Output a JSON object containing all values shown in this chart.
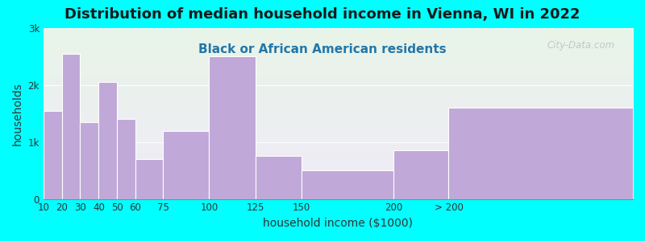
{
  "title": "Distribution of median household income in Vienna, WI in 2022",
  "subtitle": "Black or African American residents",
  "xlabel": "household income ($1000)",
  "ylabel": "households",
  "background_outer": "#00FFFF",
  "bar_color": "#C0A8D8",
  "bar_edge_color": "#FFFFFF",
  "bin_lefts": [
    10,
    20,
    30,
    40,
    50,
    60,
    75,
    100,
    125,
    150,
    200,
    230
  ],
  "bin_widths": [
    10,
    10,
    10,
    10,
    10,
    15,
    25,
    25,
    25,
    50,
    30,
    100
  ],
  "values": [
    1550,
    2550,
    1350,
    2050,
    1400,
    700,
    1200,
    2500,
    750,
    500,
    850,
    1600
  ],
  "ylim": [
    0,
    3000
  ],
  "yticks": [
    0,
    1000,
    2000,
    3000
  ],
  "ytick_labels": [
    "0",
    "1k",
    "2k",
    "3k"
  ],
  "xtick_positions": [
    10,
    20,
    30,
    40,
    50,
    60,
    75,
    100,
    125,
    150,
    200,
    230
  ],
  "xtick_labels": [
    "10",
    "20",
    "30",
    "40",
    "50",
    "60",
    "75",
    "100",
    "125",
    "150",
    "200",
    "> 200"
  ],
  "xlim": [
    10,
    330
  ],
  "title_fontsize": 13,
  "subtitle_fontsize": 11,
  "axis_label_fontsize": 10,
  "tick_fontsize": 8.5,
  "watermark": "City-Data.com",
  "title_color": "#1a1a1a",
  "subtitle_color": "#2277AA",
  "gradient_top": "#e8f5e8",
  "gradient_bottom": "#f0eaf8"
}
